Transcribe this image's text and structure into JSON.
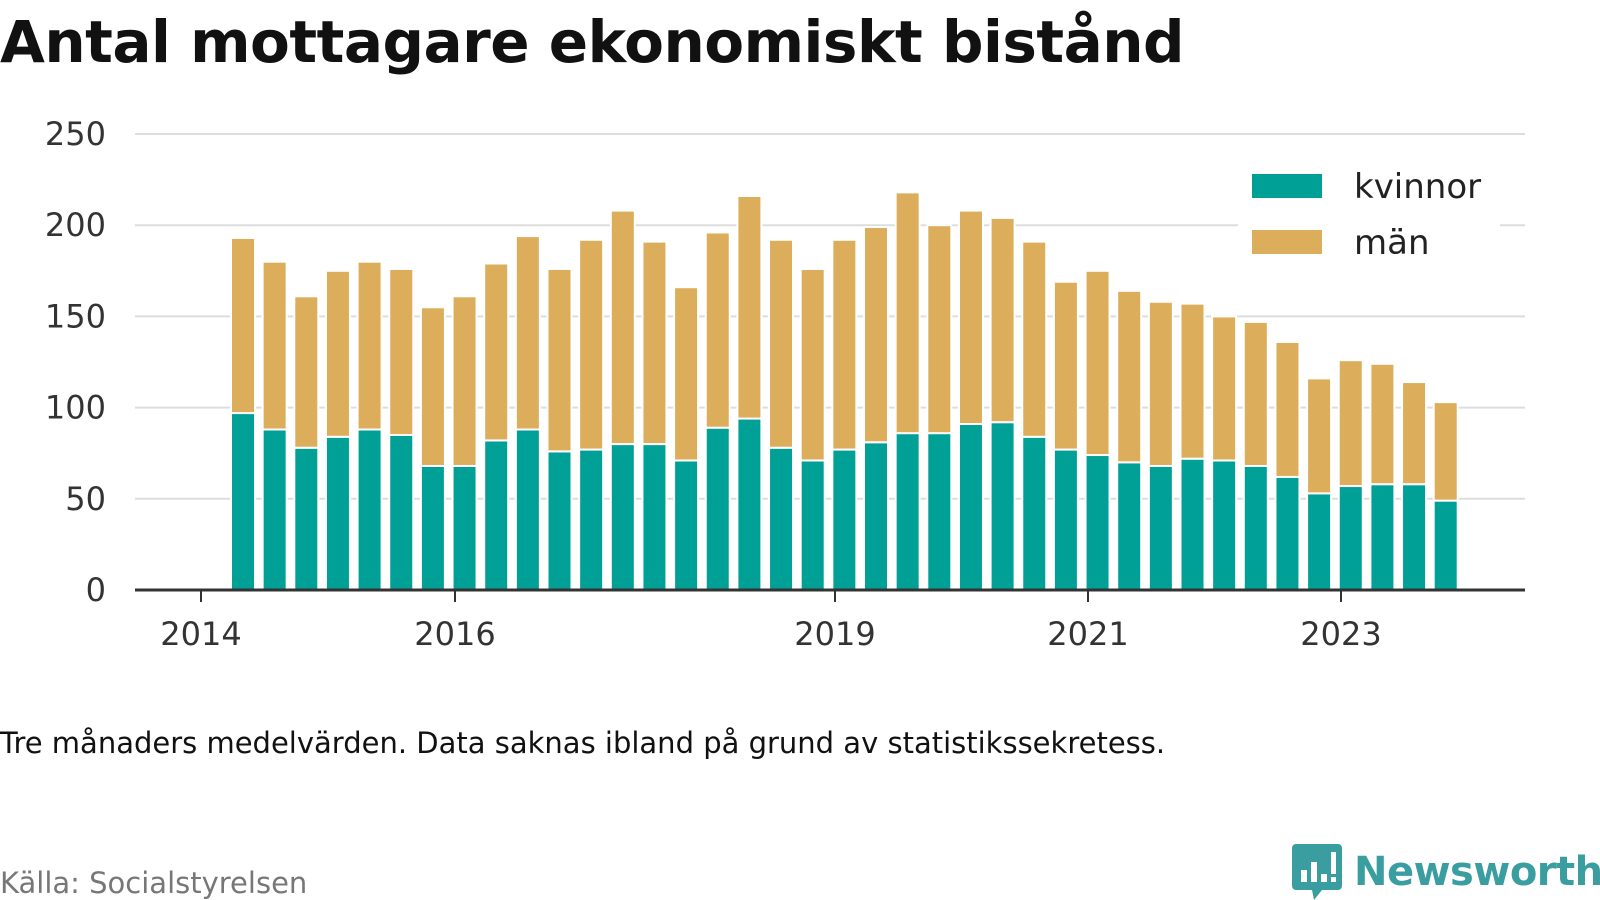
{
  "title": "Antal mottagare ekonomiskt bistånd",
  "note": "Tre månaders medelvärden. Data saknas ibland på grund av statistikssekretess.",
  "source": "Källa: Socialstyrelsen",
  "logo": {
    "name": "Newsworthy",
    "icon": "newsworthy-chart-bubble-icon",
    "color": "#3a9ea0"
  },
  "chart_data": {
    "type": "bar",
    "stacked": true,
    "title": "Antal mottagare ekonomiskt bistånd",
    "xlabel": "",
    "ylabel": "",
    "ylim": [
      0,
      250
    ],
    "yticks": [
      0,
      50,
      100,
      150,
      200,
      250
    ],
    "xticks": [
      "2014",
      "2016",
      "2019",
      "2021",
      "2023"
    ],
    "grid": true,
    "legend": "top-right",
    "series": [
      {
        "name": "kvinnor",
        "color": "#00a096",
        "values": [
          97,
          88,
          78,
          84,
          88,
          85,
          68,
          68,
          82,
          88,
          76,
          77,
          80,
          80,
          71,
          89,
          94,
          78,
          71,
          77,
          81,
          86,
          86,
          91,
          92,
          84,
          77,
          74,
          70,
          68,
          72,
          71,
          68,
          62,
          53,
          57,
          58,
          58,
          49
        ]
      },
      {
        "name": "män",
        "color": "#dcad5a",
        "values": [
          96,
          92,
          83,
          91,
          92,
          91,
          87,
          93,
          97,
          106,
          100,
          115,
          128,
          111,
          95,
          107,
          122,
          114,
          105,
          115,
          118,
          132,
          114,
          117,
          112,
          107,
          92,
          101,
          94,
          90,
          85,
          79,
          79,
          74,
          63,
          69,
          66,
          56,
          54
        ]
      }
    ]
  }
}
